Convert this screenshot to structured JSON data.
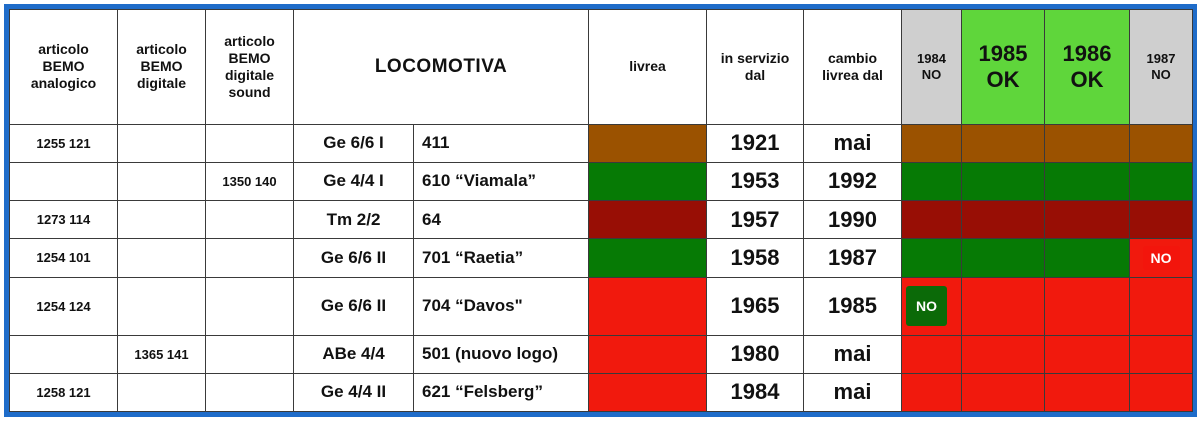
{
  "colors": {
    "frame": "#1f6cc9",
    "brown": "#9b5200",
    "green": "#067a05",
    "maroon": "#980e05",
    "red": "#f1190d",
    "header_gray": "#cfcfcf",
    "header_green": "#5fd63b"
  },
  "header": {
    "col1": [
      "articolo",
      "BEMO",
      "analogico"
    ],
    "col2": [
      "articolo",
      "BEMO",
      "digitale"
    ],
    "col3": [
      "articolo",
      "BEMO",
      "digitale",
      "sound"
    ],
    "locomotiva": "LOCOMOTIVA",
    "livrea": "livrea",
    "in_servizio": [
      "in servizio",
      "dal"
    ],
    "cambio": [
      "cambio",
      "livrea dal"
    ],
    "y1984": [
      "1984",
      "NO"
    ],
    "y1985": [
      "1985",
      "OK"
    ],
    "y1986": [
      "1986",
      "OK"
    ],
    "y1987": [
      "1987",
      "NO"
    ]
  },
  "rows": [
    {
      "analogico": "1255 121",
      "digitale": "",
      "sound": "",
      "type": "Ge 6/6 I",
      "name": "411",
      "livrea": "brown",
      "servizio": "1921",
      "cambio": "mai",
      "y1984": "brown",
      "y1985": "brown",
      "y1986": "brown",
      "y1987": "brown"
    },
    {
      "analogico": "",
      "digitale": "",
      "sound": "1350 140",
      "type": "Ge 4/4 I",
      "name": "610 “Viamala”",
      "livrea": "green",
      "servizio": "1953",
      "cambio": "1992",
      "y1984": "green",
      "y1985": "green",
      "y1986": "green",
      "y1987": "green"
    },
    {
      "analogico": "1273 114",
      "digitale": "",
      "sound": "",
      "type": "Tm 2/2",
      "name": "64",
      "livrea": "maroon",
      "servizio": "1957",
      "cambio": "1990",
      "y1984": "maroon",
      "y1985": "maroon",
      "y1986": "maroon",
      "y1987": "maroon"
    },
    {
      "analogico": "1254 101",
      "digitale": "",
      "sound": "",
      "type": "Ge 6/6 II",
      "name": "701 “Raetia”",
      "livrea": "green",
      "servizio": "1958",
      "cambio": "1987",
      "y1984": "green",
      "y1985": "green",
      "y1986": "green",
      "y1987": "red-NO"
    },
    {
      "analogico": "1254 124",
      "digitale": "",
      "sound": "",
      "type": "Ge 6/6 II",
      "name": "704 “Davos\"",
      "livrea": "red",
      "servizio": "1965",
      "cambio": "1985",
      "y1984": "green-NO",
      "y1985": "red",
      "y1986": "red",
      "y1987": "red"
    },
    {
      "analogico": "",
      "digitale": "1365 141",
      "sound": "",
      "type": "ABe 4/4",
      "name": "501 (nuovo logo)",
      "livrea": "red",
      "servizio": "1980",
      "cambio": "mai",
      "y1984": "red",
      "y1985": "red",
      "y1986": "red",
      "y1987": "red"
    },
    {
      "analogico": "1258 121",
      "digitale": "",
      "sound": "",
      "type": "Ge 4/4 II",
      "name": "621 “Felsberg”",
      "livrea": "red",
      "servizio": "1984",
      "cambio": "mai",
      "y1984": "red",
      "y1985": "red",
      "y1986": "red",
      "y1987": "red"
    }
  ],
  "badges": {
    "no": "NO"
  }
}
